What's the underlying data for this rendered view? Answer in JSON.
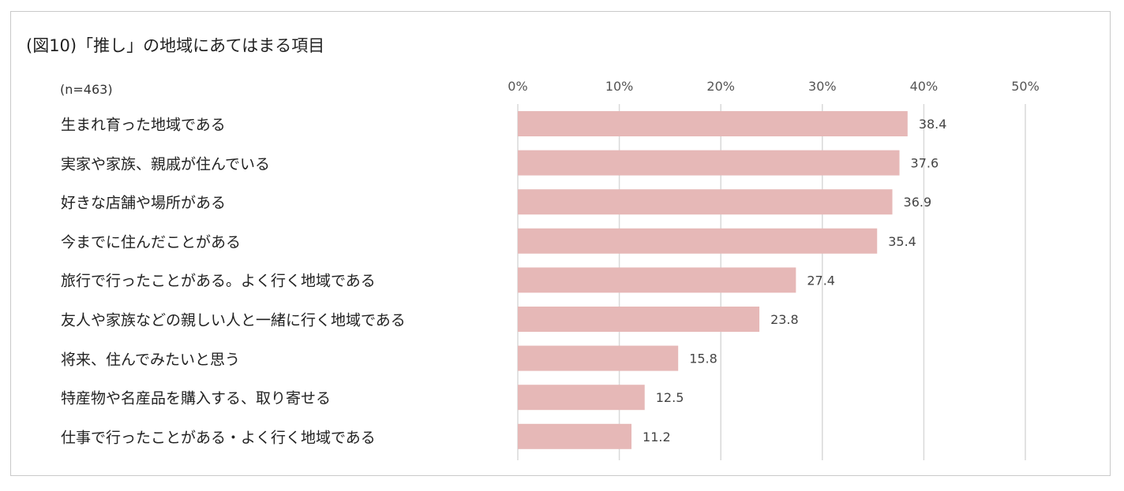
{
  "title": "(図10)「推し」の地域にあてはまる項目",
  "note": "(n=463)",
  "chart_data": {
    "type": "bar",
    "orientation": "horizontal",
    "categories": [
      "生まれ育った地域である",
      "実家や家族、親戚が住んでいる",
      "好きな店舗や場所がある",
      "今までに住んだことがある",
      "旅行で行ったことがある。よく行く地域である",
      "友人や家族などの親しい人と一緒に行く地域である",
      "将来、住んでみたいと思う",
      "特産物や名産品を購入する、取り寄せる",
      "仕事で行ったことがある・よく行く地域である"
    ],
    "values": [
      38.4,
      37.6,
      36.9,
      35.4,
      27.4,
      23.8,
      15.8,
      12.5,
      11.2
    ],
    "value_labels": [
      "38.4",
      "37.6",
      "36.9",
      "35.4",
      "27.4",
      "23.8",
      "15.8",
      "12.5",
      "11.2"
    ],
    "xlim": [
      0,
      50
    ],
    "x_ticks": [
      "0%",
      "10%",
      "20%",
      "30%",
      "40%",
      "50%"
    ],
    "x_tick_values": [
      0,
      10,
      20,
      30,
      40,
      50
    ],
    "axis_position": "top",
    "grid": true,
    "bar_color": "#e6b8b7",
    "grid_color": "#d9d9d9"
  }
}
